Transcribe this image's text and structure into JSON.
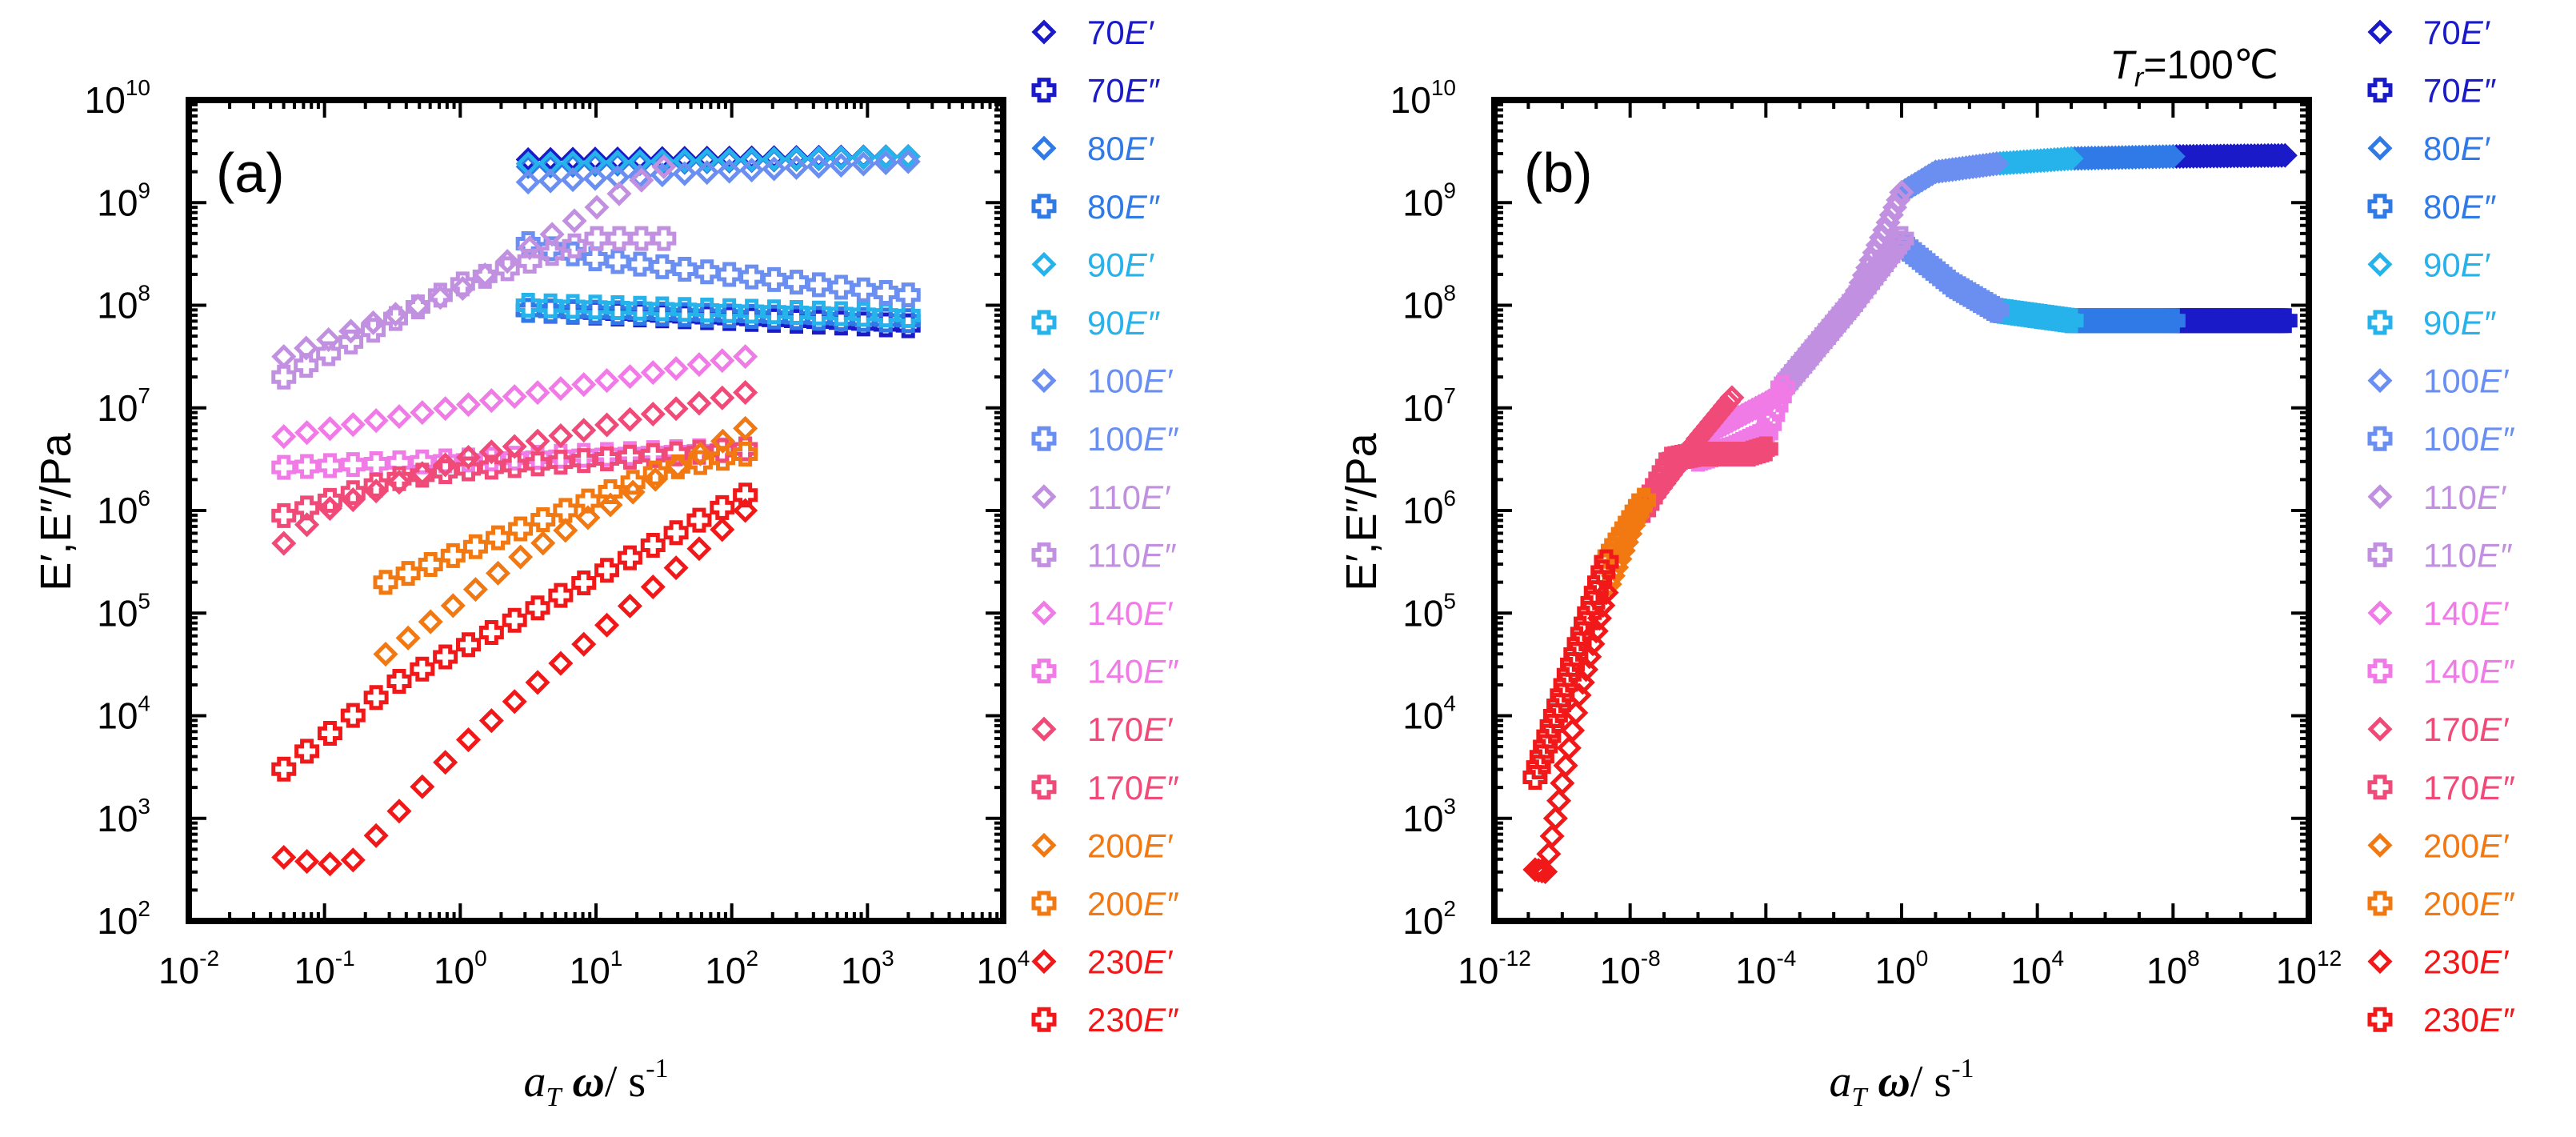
{
  "colors": {
    "70": "#1a1ac8",
    "80": "#2f7ae6",
    "90": "#26b2ea",
    "100": "#6a8ff0",
    "110": "#c190e0",
    "140": "#f07ae6",
    "170": "#f04a78",
    "200": "#f27811",
    "230": "#f01818"
  },
  "legend": [
    {
      "temp": "70",
      "label": "70",
      "modulus": "E′",
      "marker": "diamond"
    },
    {
      "temp": "70",
      "label": "70",
      "modulus": "E″",
      "marker": "cross"
    },
    {
      "temp": "80",
      "label": "80",
      "modulus": "E′",
      "marker": "diamond"
    },
    {
      "temp": "80",
      "label": "80",
      "modulus": "E″",
      "marker": "cross"
    },
    {
      "temp": "90",
      "label": "90",
      "modulus": "E′",
      "marker": "diamond"
    },
    {
      "temp": "90",
      "label": "90",
      "modulus": "E″",
      "marker": "cross"
    },
    {
      "temp": "100",
      "label": "100",
      "modulus": "E′",
      "marker": "diamond"
    },
    {
      "temp": "100",
      "label": "100",
      "modulus": "E″",
      "marker": "cross"
    },
    {
      "temp": "110",
      "label": "110",
      "modulus": "E′",
      "marker": "diamond"
    },
    {
      "temp": "110",
      "label": "110",
      "modulus": "E″",
      "marker": "cross"
    },
    {
      "temp": "140",
      "label": "140",
      "modulus": "E′",
      "marker": "diamond"
    },
    {
      "temp": "140",
      "label": "140",
      "modulus": "E″",
      "marker": "cross"
    },
    {
      "temp": "170",
      "label": "170",
      "modulus": "E′",
      "marker": "diamond"
    },
    {
      "temp": "170",
      "label": "170",
      "modulus": "E″",
      "marker": "cross"
    },
    {
      "temp": "200",
      "label": "200",
      "modulus": "E′",
      "marker": "diamond"
    },
    {
      "temp": "200",
      "label": "200",
      "modulus": "E″",
      "marker": "cross"
    },
    {
      "temp": "230",
      "label": "230",
      "modulus": "E′",
      "marker": "diamond"
    },
    {
      "temp": "230",
      "label": "230",
      "modulus": "E″",
      "marker": "cross"
    }
  ],
  "chart_data": [
    {
      "id": "a",
      "type": "scatter",
      "panel_label": "(a)",
      "xlabel_base": "a",
      "xlabel_sub": "T",
      "xlabel_omega": "ω",
      "xlabel_unit": "/ s",
      "xlabel_unit_exp": "-1",
      "ylabel": "E′,E″/Pa",
      "xscale": "log",
      "yscale": "log",
      "xlim": [
        -2,
        4
      ],
      "ylim": [
        2,
        10
      ],
      "xticks": [
        -2,
        -1,
        0,
        1,
        2,
        3,
        4
      ],
      "yticks": [
        2,
        3,
        4,
        5,
        6,
        7,
        8,
        9,
        10
      ],
      "tick_base": "10",
      "legend_position": "right",
      "series": [
        {
          "name": "70E′",
          "temp": "70",
          "marker": "diamond",
          "segments": [
            {
              "x": [
                0.5,
                3.3
              ],
              "y": [
                9.42,
                9.45
              ]
            }
          ]
        },
        {
          "name": "70E″",
          "temp": "70",
          "marker": "cross",
          "segments": [
            {
              "x": [
                0.5,
                3.3
              ],
              "y": [
                7.95,
                7.8
              ]
            }
          ]
        },
        {
          "name": "80E′",
          "temp": "80",
          "marker": "diamond",
          "segments": [
            {
              "x": [
                0.5,
                3.3
              ],
              "y": [
                9.35,
                9.45
              ]
            }
          ]
        },
        {
          "name": "80E″",
          "temp": "80",
          "marker": "cross",
          "segments": [
            {
              "x": [
                0.5,
                3.3
              ],
              "y": [
                7.95,
                7.85
              ]
            }
          ]
        },
        {
          "name": "90E′",
          "temp": "90",
          "marker": "diamond",
          "segments": [
            {
              "x": [
                0.5,
                3.3
              ],
              "y": [
                9.38,
                9.45
              ]
            }
          ]
        },
        {
          "name": "90E″",
          "temp": "90",
          "marker": "cross",
          "segments": [
            {
              "x": [
                0.5,
                3.3
              ],
              "y": [
                8.0,
                7.9
              ]
            }
          ]
        },
        {
          "name": "100E′",
          "temp": "100",
          "marker": "diamond",
          "segments": [
            {
              "x": [
                0.5,
                3.3
              ],
              "y": [
                9.2,
                9.4
              ]
            }
          ]
        },
        {
          "name": "100E″",
          "temp": "100",
          "marker": "cross",
          "segments": [
            {
              "x": [
                0.5,
                1.0,
                3.3
              ],
              "y": [
                8.6,
                8.45,
                8.1
              ]
            }
          ]
        },
        {
          "name": "110E′",
          "temp": "110",
          "marker": "diamond",
          "segments": [
            {
              "x": [
                -1.3,
                0.0,
                1.5
              ],
              "y": [
                7.5,
                8.15,
                9.35
              ]
            }
          ]
        },
        {
          "name": "110E″",
          "temp": "110",
          "marker": "cross",
          "segments": [
            {
              "x": [
                -1.3,
                0.0,
                1.0,
                1.5
              ],
              "y": [
                7.3,
                8.2,
                8.65,
                8.65
              ]
            }
          ]
        },
        {
          "name": "140E′",
          "temp": "140",
          "marker": "diamond",
          "segments": [
            {
              "x": [
                -1.3,
                2.1
              ],
              "y": [
                6.72,
                7.5
              ]
            }
          ]
        },
        {
          "name": "140E″",
          "temp": "140",
          "marker": "cross",
          "segments": [
            {
              "x": [
                -1.3,
                2.1
              ],
              "y": [
                6.42,
                6.6
              ]
            }
          ]
        },
        {
          "name": "170E′",
          "temp": "170",
          "marker": "diamond",
          "segments": [
            {
              "x": [
                -1.3,
                -1.0,
                0.0,
                2.1
              ],
              "y": [
                5.68,
                6.0,
                6.5,
                7.15
              ]
            }
          ]
        },
        {
          "name": "170E″",
          "temp": "170",
          "marker": "cross",
          "segments": [
            {
              "x": [
                -1.3,
                -0.5,
                0.0,
                2.1
              ],
              "y": [
                5.95,
                6.3,
                6.4,
                6.6
              ]
            }
          ]
        },
        {
          "name": "200E′",
          "temp": "200",
          "marker": "diamond",
          "segments": [
            {
              "x": [
                -0.55,
                0.5,
                2.1
              ],
              "y": [
                4.6,
                5.6,
                6.8
              ]
            }
          ]
        },
        {
          "name": "200E″",
          "temp": "200",
          "marker": "cross",
          "segments": [
            {
              "x": [
                -0.55,
                0.5,
                1.5,
                2.1
              ],
              "y": [
                5.3,
                5.85,
                6.4,
                6.55
              ]
            }
          ]
        },
        {
          "name": "230E′",
          "temp": "230",
          "marker": "diamond",
          "segments": [
            {
              "x": [
                -1.3,
                -1.0,
                -0.8,
                0.0,
                2.1
              ],
              "y": [
                2.62,
                2.55,
                2.58,
                3.7,
                6.0
              ]
            }
          ]
        },
        {
          "name": "230E″",
          "temp": "230",
          "marker": "cross",
          "segments": [
            {
              "x": [
                -1.3,
                -0.5,
                0.5,
                2.1
              ],
              "y": [
                3.48,
                4.3,
                5.0,
                6.15
              ]
            }
          ]
        }
      ]
    },
    {
      "id": "b",
      "type": "scatter",
      "panel_label": "(b)",
      "annotation_base": "T",
      "annotation_sub": "r",
      "annotation_rest": "=100℃",
      "xlabel_base": "a",
      "xlabel_sub": "T",
      "xlabel_omega": "ω",
      "xlabel_unit": "/ s",
      "xlabel_unit_exp": "-1",
      "ylabel": "E′,E″/Pa",
      "xscale": "log",
      "yscale": "log",
      "xlim": [
        -12,
        12
      ],
      "ylim": [
        2,
        10
      ],
      "xticks": [
        -12,
        -8,
        -4,
        0,
        4,
        8,
        12
      ],
      "yticks": [
        2,
        3,
        4,
        5,
        6,
        7,
        8,
        9,
        10
      ],
      "tick_base": "10",
      "legend_position": "right",
      "series": [
        {
          "name": "70E′",
          "temp": "70",
          "marker": "diamond",
          "segments": [
            {
              "x": [
                8.0,
                11.3
              ],
              "y": [
                9.45,
                9.46
              ]
            }
          ]
        },
        {
          "name": "70E″",
          "temp": "70",
          "marker": "cross",
          "segments": [
            {
              "x": [
                8.0,
                11.3
              ],
              "y": [
                7.85,
                7.85
              ]
            }
          ]
        },
        {
          "name": "80E′",
          "temp": "80",
          "marker": "diamond",
          "segments": [
            {
              "x": [
                5.0,
                8.0
              ],
              "y": [
                9.43,
                9.45
              ]
            }
          ]
        },
        {
          "name": "80E″",
          "temp": "80",
          "marker": "cross",
          "segments": [
            {
              "x": [
                5.0,
                8.0
              ],
              "y": [
                7.85,
                7.85
              ]
            }
          ]
        },
        {
          "name": "90E′",
          "temp": "90",
          "marker": "diamond",
          "segments": [
            {
              "x": [
                2.8,
                5.0
              ],
              "y": [
                9.38,
                9.43
              ]
            }
          ]
        },
        {
          "name": "90E″",
          "temp": "90",
          "marker": "cross",
          "segments": [
            {
              "x": [
                2.8,
                5.0
              ],
              "y": [
                7.95,
                7.85
              ]
            }
          ]
        },
        {
          "name": "100E′",
          "temp": "100",
          "marker": "diamond",
          "segments": [
            {
              "x": [
                0.0,
                1.0,
                2.8
              ],
              "y": [
                9.1,
                9.3,
                9.38
              ]
            }
          ]
        },
        {
          "name": "100E″",
          "temp": "100",
          "marker": "cross",
          "segments": [
            {
              "x": [
                0.0,
                1.5,
                2.8
              ],
              "y": [
                8.6,
                8.2,
                7.95
              ]
            }
          ]
        },
        {
          "name": "110E′",
          "temp": "110",
          "marker": "diamond",
          "segments": [
            {
              "x": [
                -3.5,
                -1.5,
                0.0
              ],
              "y": [
                7.15,
                8.0,
                9.1
              ]
            }
          ]
        },
        {
          "name": "110E″",
          "temp": "110",
          "marker": "cross",
          "segments": [
            {
              "x": [
                -3.5,
                -1.5,
                0.0
              ],
              "y": [
                7.2,
                8.0,
                8.65
              ]
            }
          ]
        },
        {
          "name": "140E′",
          "temp": "140",
          "marker": "diamond",
          "segments": [
            {
              "x": [
                -6.0,
                -4.0,
                -3.5
              ],
              "y": [
                6.7,
                7.05,
                7.15
              ]
            }
          ]
        },
        {
          "name": "140E″",
          "temp": "140",
          "marker": "cross",
          "segments": [
            {
              "x": [
                -6.0,
                -5.0,
                -4.0,
                -3.5
              ],
              "y": [
                6.5,
                6.6,
                6.75,
                7.2
              ]
            }
          ]
        },
        {
          "name": "170E′",
          "temp": "170",
          "marker": "diamond",
          "segments": [
            {
              "x": [
                -7.6,
                -6.0,
                -5.0
              ],
              "y": [
                6.0,
                6.7,
                7.1
              ]
            }
          ]
        },
        {
          "name": "170E″",
          "temp": "170",
          "marker": "cross",
          "segments": [
            {
              "x": [
                -7.6,
                -6.8,
                -6.0,
                -4.5,
                -4.0
              ],
              "y": [
                6.0,
                6.5,
                6.55,
                6.55,
                6.6
              ]
            }
          ]
        },
        {
          "name": "200E′",
          "temp": "200",
          "marker": "diamond",
          "segments": [
            {
              "x": [
                -8.7,
                -7.6
              ],
              "y": [
                5.2,
                6.1
              ]
            }
          ]
        },
        {
          "name": "200E″",
          "temp": "200",
          "marker": "cross",
          "segments": [
            {
              "x": [
                -8.7,
                -7.6
              ],
              "y": [
                5.5,
                6.1
              ]
            }
          ]
        },
        {
          "name": "230E′",
          "temp": "230",
          "marker": "diamond",
          "segments": [
            {
              "x": [
                -10.8,
                -10.5,
                -10.2,
                -9.5,
                -8.7
              ],
              "y": [
                2.5,
                2.48,
                3.0,
                4.2,
                5.2
              ]
            }
          ]
        },
        {
          "name": "230E″",
          "temp": "230",
          "marker": "cross",
          "segments": [
            {
              "x": [
                -10.8,
                -10.0,
                -9.2,
                -8.7
              ],
              "y": [
                3.4,
                4.2,
                5.0,
                5.5
              ]
            }
          ]
        }
      ]
    }
  ]
}
